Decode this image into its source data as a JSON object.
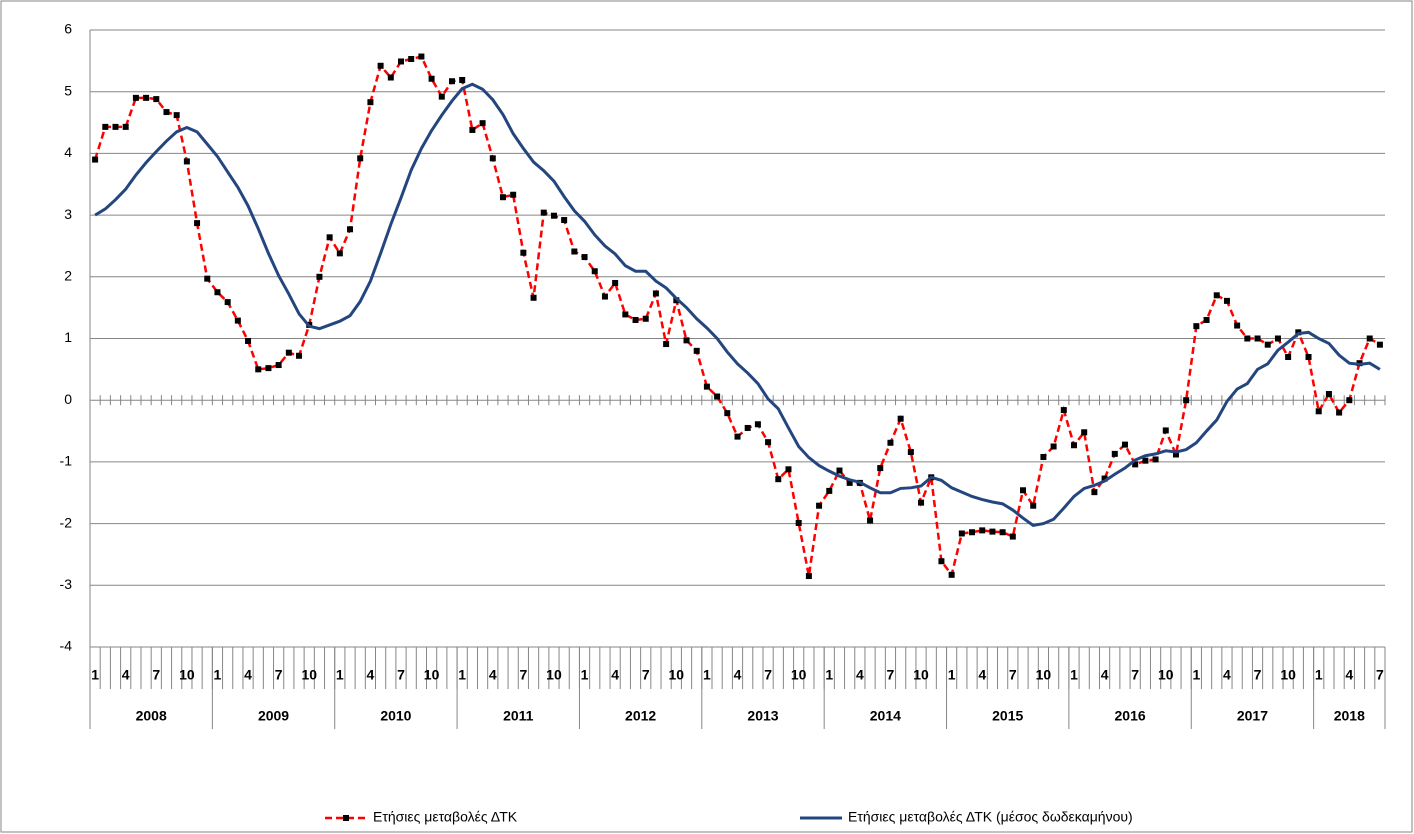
{
  "chart_data": {
    "type": "line",
    "categories": [
      "1",
      null,
      null,
      "4",
      null,
      null,
      "7",
      null,
      null,
      "10",
      null,
      null,
      "1",
      null,
      null,
      "4",
      null,
      null,
      "7",
      null,
      null,
      "10",
      null,
      null,
      "1",
      null,
      null,
      "4",
      null,
      null,
      "7",
      null,
      null,
      "10",
      null,
      null,
      "1",
      null,
      null,
      "4",
      null,
      null,
      "7",
      null,
      null,
      "10",
      null,
      null,
      "1",
      null,
      null,
      "4",
      null,
      null,
      "7",
      null,
      null,
      "10",
      null,
      null,
      "1",
      null,
      null,
      "4",
      null,
      null,
      "7",
      null,
      null,
      "10",
      null,
      null,
      "1",
      null,
      null,
      "4",
      null,
      null,
      "7",
      null,
      null,
      "10",
      null,
      null,
      "1",
      null,
      null,
      "4",
      null,
      null,
      "7",
      null,
      null,
      "10",
      null,
      null,
      "1",
      null,
      null,
      "4",
      null,
      null,
      "7",
      null,
      null,
      "10",
      null,
      null,
      "1",
      null,
      null,
      "4",
      null,
      null,
      "7",
      null,
      null,
      "10",
      null,
      null,
      "1",
      null,
      null,
      "4",
      null,
      null,
      "7"
    ],
    "years": [
      "2008",
      "2009",
      "2010",
      "2011",
      "2012",
      "2013",
      "2014",
      "2015",
      "2016",
      "2017",
      "2018"
    ],
    "ylim": [
      -4,
      6
    ],
    "yticks": [
      -4,
      -3,
      -2,
      -1,
      0,
      1,
      2,
      3,
      4,
      5,
      6
    ],
    "grid": true,
    "legend": "bottom",
    "series": [
      {
        "name": "Ετήσιες μεταβολές ΔΤΚ",
        "color": "#ff0000",
        "dashed": true,
        "marker_color": "#000000",
        "values": [
          3.9,
          4.43,
          4.43,
          4.43,
          4.9,
          4.9,
          4.88,
          4.67,
          4.62,
          3.87,
          2.87,
          1.97,
          1.75,
          1.59,
          1.29,
          0.96,
          0.5,
          0.52,
          0.57,
          0.77,
          0.72,
          1.22,
          2.0,
          2.64,
          2.38,
          2.77,
          3.92,
          4.83,
          5.42,
          5.23,
          5.49,
          5.53,
          5.57,
          5.21,
          4.92,
          5.17,
          5.19,
          4.38,
          4.49,
          3.92,
          3.29,
          3.33,
          2.39,
          1.66,
          3.04,
          2.99,
          2.92,
          2.41,
          2.32,
          2.09,
          1.68,
          1.9,
          1.39,
          1.3,
          1.32,
          1.73,
          0.91,
          1.62,
          0.97,
          0.8,
          0.22,
          0.06,
          -0.21,
          -0.59,
          -0.45,
          -0.39,
          -0.68,
          -1.28,
          -1.12,
          -1.99,
          -2.85,
          -1.71,
          -1.47,
          -1.14,
          -1.34,
          -1.34,
          -1.95,
          -1.1,
          -0.69,
          -0.3,
          -0.84,
          -1.66,
          -1.25,
          -2.61,
          -2.83,
          -2.16,
          -2.14,
          -2.11,
          -2.13,
          -2.14,
          -2.21,
          -1.46,
          -1.71,
          -0.92,
          -0.75,
          -0.16,
          -0.73,
          -0.52,
          -1.49,
          -1.27,
          -0.87,
          -0.72,
          -1.04,
          -0.98,
          -0.96,
          -0.49,
          -0.88,
          0.0,
          1.2,
          1.3,
          1.7,
          1.61,
          1.21,
          1.0,
          1.0,
          0.9,
          1.0,
          0.7,
          1.1,
          0.7,
          -0.18,
          0.1,
          -0.2,
          0.0,
          0.6,
          1.0,
          0.9
        ]
      },
      {
        "name": "Ετήσιες μεταβολές ΔΤΚ (μέσος δωδεκαμήνου)",
        "color": "#24467f",
        "dashed": false,
        "values": [
          3.0,
          3.1,
          3.25,
          3.42,
          3.65,
          3.85,
          4.03,
          4.2,
          4.35,
          4.42,
          4.35,
          4.15,
          3.95,
          3.7,
          3.45,
          3.15,
          2.78,
          2.38,
          2.02,
          1.72,
          1.4,
          1.2,
          1.16,
          1.22,
          1.28,
          1.37,
          1.6,
          1.93,
          2.38,
          2.85,
          3.28,
          3.73,
          4.08,
          4.37,
          4.62,
          4.85,
          5.05,
          5.12,
          5.04,
          4.87,
          4.63,
          4.32,
          4.08,
          3.86,
          3.72,
          3.55,
          3.3,
          3.07,
          2.9,
          2.68,
          2.5,
          2.37,
          2.18,
          2.09,
          2.09,
          1.93,
          1.82,
          1.65,
          1.5,
          1.32,
          1.17,
          1.0,
          0.78,
          0.59,
          0.44,
          0.27,
          0.02,
          -0.14,
          -0.45,
          -0.75,
          -0.93,
          -1.06,
          -1.15,
          -1.23,
          -1.29,
          -1.33,
          -1.42,
          -1.5,
          -1.5,
          -1.43,
          -1.42,
          -1.39,
          -1.25,
          -1.3,
          -1.42,
          -1.49,
          -1.56,
          -1.61,
          -1.65,
          -1.68,
          -1.78,
          -1.91,
          -2.03,
          -2.0,
          -1.93,
          -1.75,
          -1.56,
          -1.43,
          -1.38,
          -1.31,
          -1.2,
          -1.1,
          -0.97,
          -0.9,
          -0.87,
          -0.82,
          -0.84,
          -0.8,
          -0.69,
          -0.5,
          -0.32,
          -0.02,
          0.18,
          0.27,
          0.5,
          0.59,
          0.81,
          0.94,
          1.08,
          1.1,
          1.0,
          0.92,
          0.73,
          0.6,
          0.58,
          0.6,
          0.5
        ]
      }
    ]
  }
}
